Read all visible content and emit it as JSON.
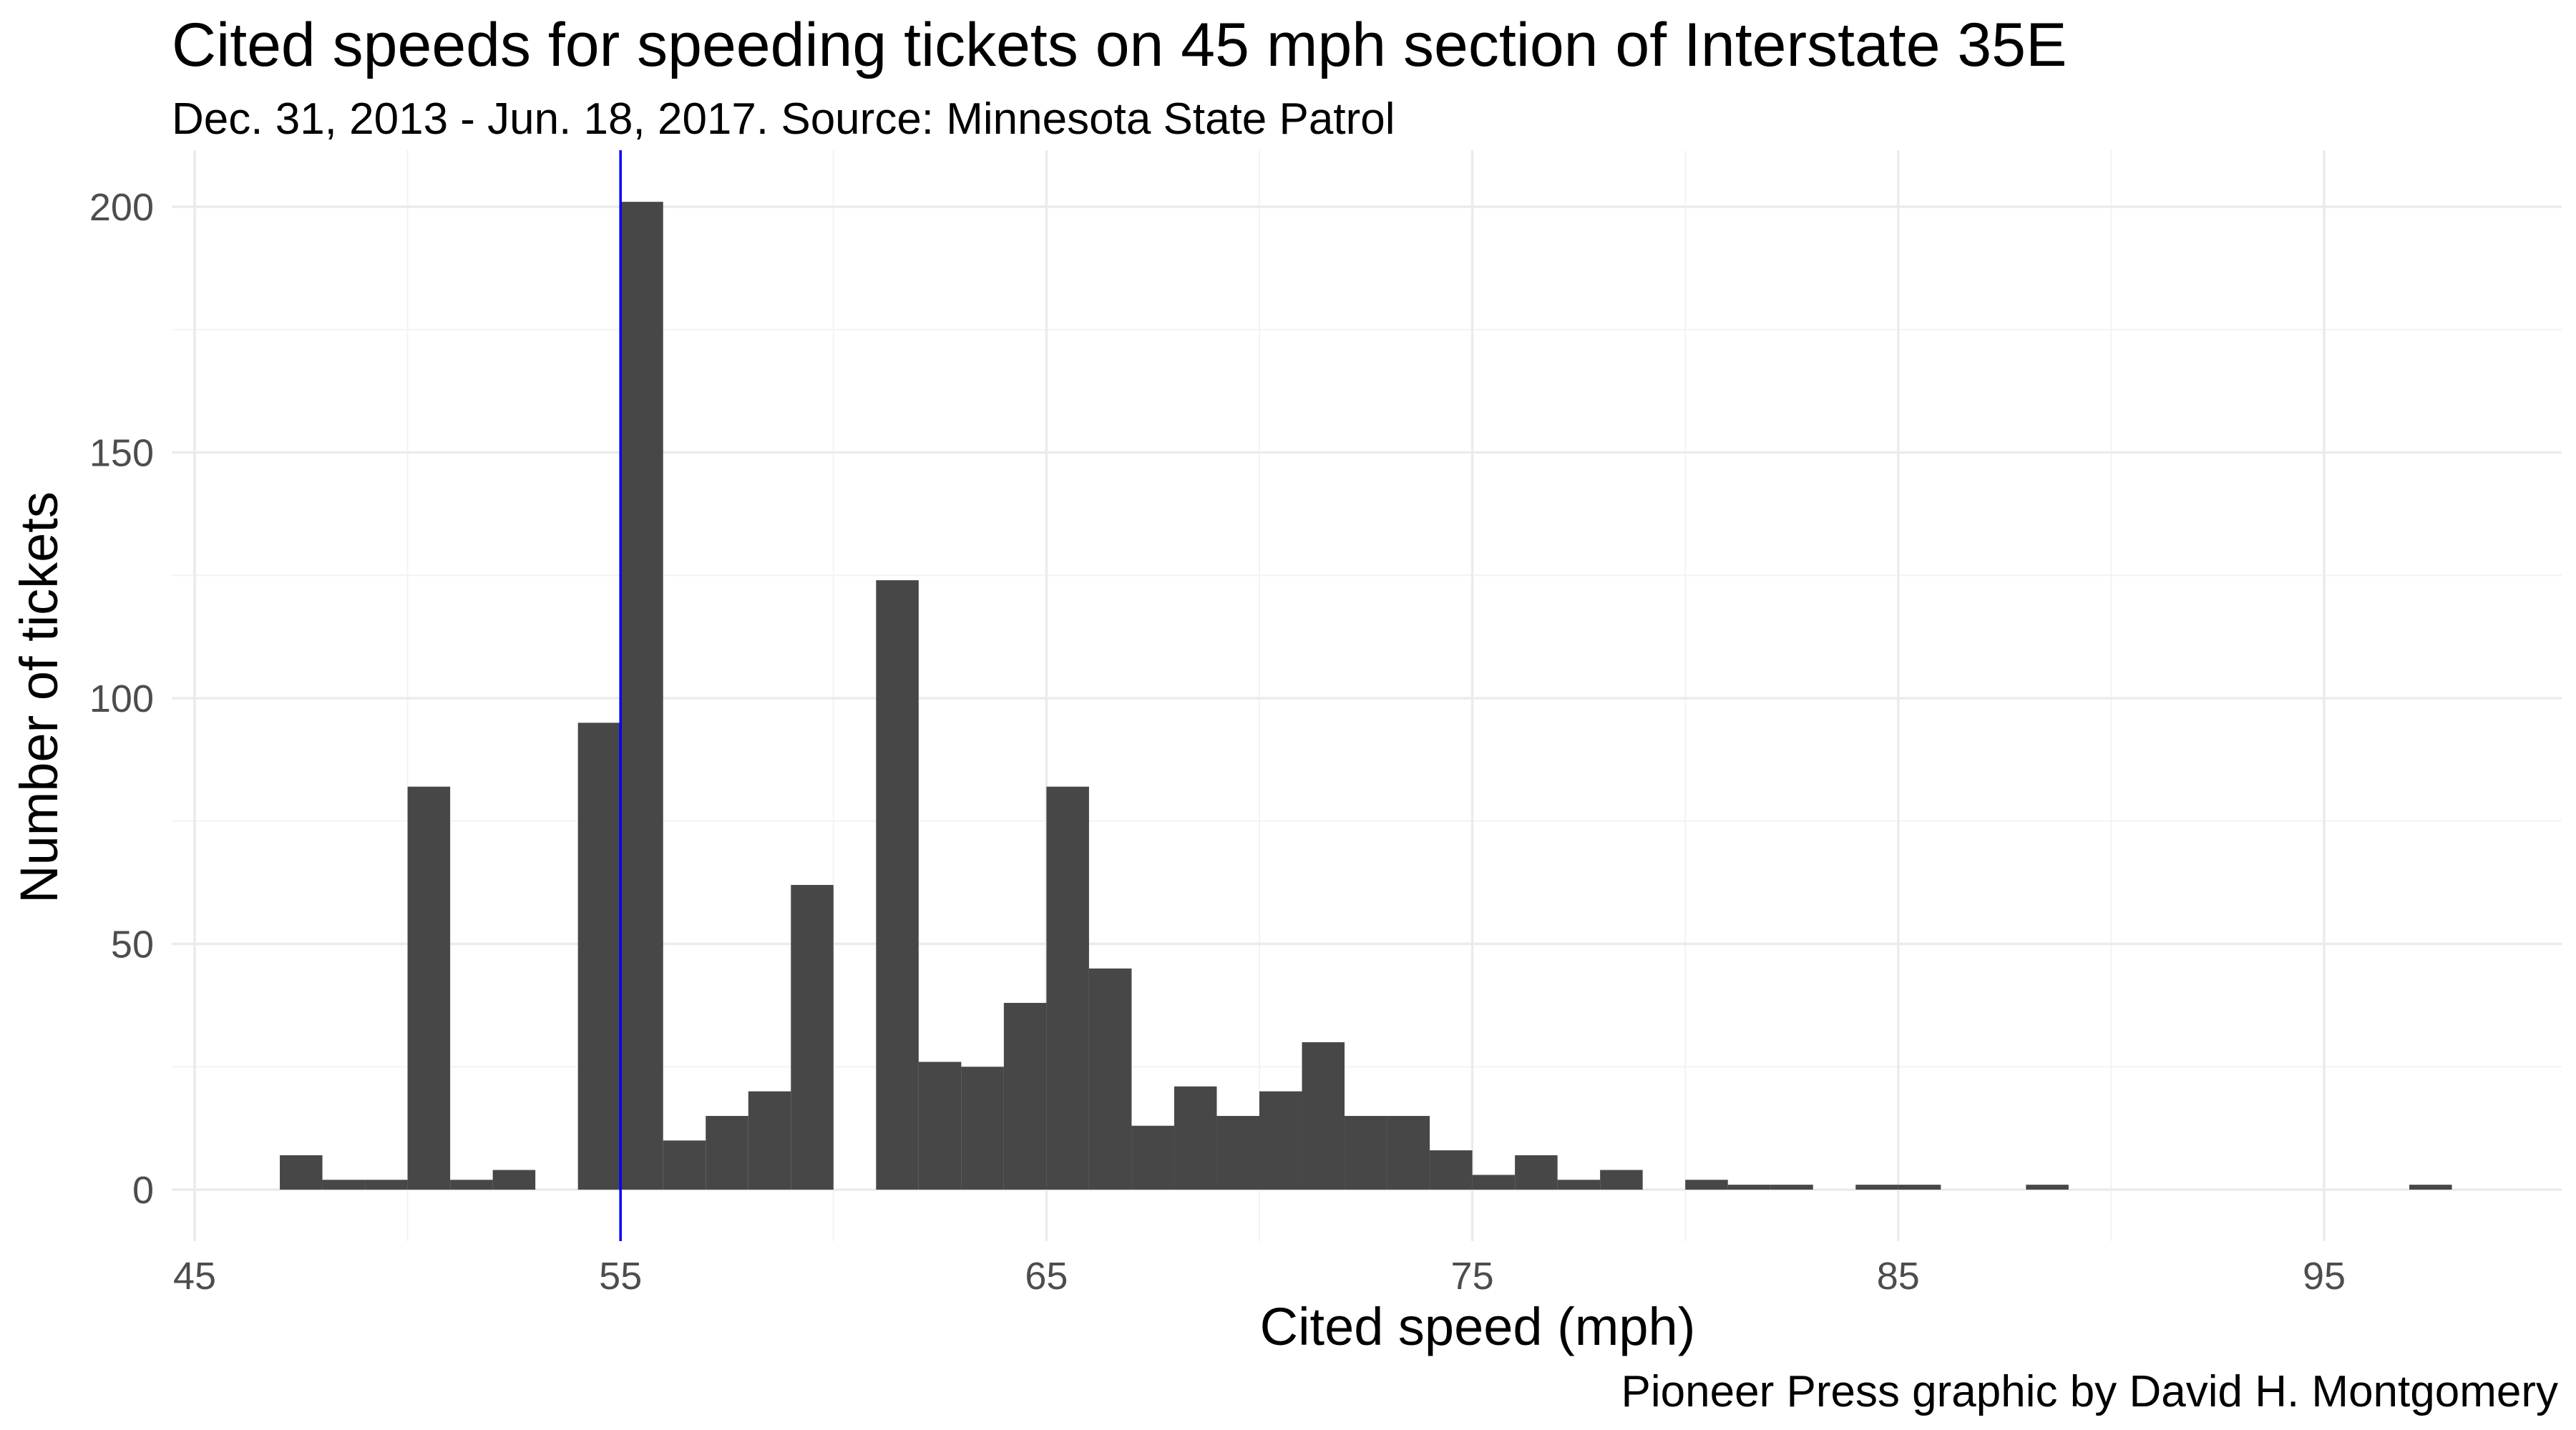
{
  "chart_data": {
    "type": "bar",
    "title": "Cited speeds for speeding tickets on 45 mph section of Interstate 35E",
    "subtitle": "Dec. 31, 2013 - Jun. 18, 2017. Source: Minnesota State Patrol",
    "caption": "Pioneer Press graphic by David H. Montgomery",
    "xlabel": "Cited speed (mph)",
    "ylabel": "Number of tickets",
    "xlim": [
      45,
      100
    ],
    "ylim": [
      0,
      200
    ],
    "x_ticks": [
      45,
      55,
      65,
      75,
      85,
      95
    ],
    "y_ticks": [
      0,
      50,
      100,
      150,
      200
    ],
    "grid": true,
    "reference_line": {
      "x": 55,
      "color": "#0000ff"
    },
    "bar_color": "#474747",
    "bins": [
      {
        "x": 47.5,
        "count": 7
      },
      {
        "x": 48.5,
        "count": 2
      },
      {
        "x": 49.5,
        "count": 2
      },
      {
        "x": 50.5,
        "count": 82
      },
      {
        "x": 51.5,
        "count": 2
      },
      {
        "x": 52.5,
        "count": 4
      },
      {
        "x": 54.5,
        "count": 95
      },
      {
        "x": 55.5,
        "count": 201
      },
      {
        "x": 56.5,
        "count": 10
      },
      {
        "x": 57.5,
        "count": 15
      },
      {
        "x": 58.5,
        "count": 20
      },
      {
        "x": 59.5,
        "count": 62
      },
      {
        "x": 61.5,
        "count": 124
      },
      {
        "x": 62.5,
        "count": 26
      },
      {
        "x": 63.5,
        "count": 25
      },
      {
        "x": 64.5,
        "count": 38
      },
      {
        "x": 65.5,
        "count": 82
      },
      {
        "x": 66.5,
        "count": 45
      },
      {
        "x": 67.5,
        "count": 13
      },
      {
        "x": 68.5,
        "count": 21
      },
      {
        "x": 69.5,
        "count": 15
      },
      {
        "x": 70.5,
        "count": 20
      },
      {
        "x": 71.5,
        "count": 30
      },
      {
        "x": 72.5,
        "count": 15
      },
      {
        "x": 73.5,
        "count": 15
      },
      {
        "x": 74.5,
        "count": 8
      },
      {
        "x": 75.5,
        "count": 3
      },
      {
        "x": 76.5,
        "count": 7
      },
      {
        "x": 77.5,
        "count": 2
      },
      {
        "x": 78.5,
        "count": 4
      },
      {
        "x": 80.5,
        "count": 2
      },
      {
        "x": 81.5,
        "count": 1
      },
      {
        "x": 82.5,
        "count": 1
      },
      {
        "x": 84.5,
        "count": 1
      },
      {
        "x": 85.5,
        "count": 1
      },
      {
        "x": 88.5,
        "count": 1
      },
      {
        "x": 97.5,
        "count": 1
      }
    ],
    "bin_width": 1
  }
}
